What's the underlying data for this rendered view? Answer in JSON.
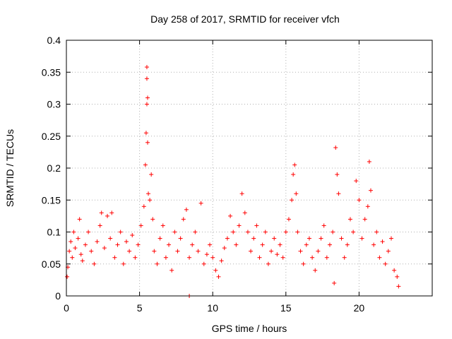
{
  "chart_data": {
    "type": "scatter",
    "title": "Day 258 of 2017, SRMTID for receiver vfch",
    "xlabel": "GPS time / hours",
    "ylabel": "SRMTID / TECUs",
    "xlim": [
      0,
      25
    ],
    "ylim": [
      0,
      0.4
    ],
    "x_ticks": [
      0,
      5,
      10,
      15,
      20
    ],
    "x_tick_labels": [
      "0",
      "5",
      "10",
      "15",
      "20"
    ],
    "y_ticks": [
      0,
      0.05,
      0.1,
      0.15,
      0.2,
      0.25,
      0.3,
      0.35,
      0.4
    ],
    "y_tick_labels": [
      "0",
      "0.05",
      "0.1",
      "0.15",
      "0.2",
      "0.25",
      "0.3",
      "0.35",
      "0.4"
    ],
    "grid": true,
    "marker": "+",
    "color": "#ff0000",
    "series": [
      {
        "name": "SRMTID",
        "points": [
          [
            0.05,
            0.03
          ],
          [
            0.1,
            0.045
          ],
          [
            0.2,
            0.07
          ],
          [
            0.3,
            0.085
          ],
          [
            0.4,
            0.06
          ],
          [
            0.5,
            0.1
          ],
          [
            0.6,
            0.075
          ],
          [
            0.8,
            0.09
          ],
          [
            0.9,
            0.12
          ],
          [
            1.0,
            0.065
          ],
          [
            1.1,
            0.055
          ],
          [
            1.3,
            0.08
          ],
          [
            1.5,
            0.1
          ],
          [
            1.7,
            0.07
          ],
          [
            1.9,
            0.05
          ],
          [
            2.1,
            0.085
          ],
          [
            2.3,
            0.11
          ],
          [
            2.4,
            0.13
          ],
          [
            2.6,
            0.075
          ],
          [
            2.8,
            0.125
          ],
          [
            3.0,
            0.09
          ],
          [
            3.1,
            0.13
          ],
          [
            3.3,
            0.06
          ],
          [
            3.5,
            0.08
          ],
          [
            3.7,
            0.1
          ],
          [
            3.9,
            0.05
          ],
          [
            4.1,
            0.085
          ],
          [
            4.3,
            0.07
          ],
          [
            4.5,
            0.095
          ],
          [
            4.7,
            0.06
          ],
          [
            4.9,
            0.08
          ],
          [
            5.1,
            0.11
          ],
          [
            5.3,
            0.14
          ],
          [
            5.4,
            0.205
          ],
          [
            5.45,
            0.255
          ],
          [
            5.5,
            0.3
          ],
          [
            5.5,
            0.34
          ],
          [
            5.5,
            0.358
          ],
          [
            5.55,
            0.31
          ],
          [
            5.55,
            0.24
          ],
          [
            5.6,
            0.16
          ],
          [
            5.7,
            0.15
          ],
          [
            5.8,
            0.19
          ],
          [
            5.9,
            0.12
          ],
          [
            6.0,
            0.07
          ],
          [
            6.2,
            0.05
          ],
          [
            6.4,
            0.09
          ],
          [
            6.6,
            0.11
          ],
          [
            6.8,
            0.06
          ],
          [
            7.0,
            0.08
          ],
          [
            7.2,
            0.04
          ],
          [
            7.4,
            0.1
          ],
          [
            7.6,
            0.07
          ],
          [
            7.8,
            0.09
          ],
          [
            8.0,
            0.12
          ],
          [
            8.2,
            0.135
          ],
          [
            8.4,
            0.06
          ],
          [
            8.6,
            0.08
          ],
          [
            8.8,
            0.1
          ],
          [
            9.0,
            0.07
          ],
          [
            9.2,
            0.145
          ],
          [
            9.4,
            0.05
          ],
          [
            9.6,
            0.065
          ],
          [
            9.8,
            0.08
          ],
          [
            10.0,
            0.06
          ],
          [
            10.2,
            0.04
          ],
          [
            10.4,
            0.03
          ],
          [
            10.6,
            0.055
          ],
          [
            10.8,
            0.075
          ],
          [
            11.0,
            0.09
          ],
          [
            11.2,
            0.125
          ],
          [
            11.4,
            0.1
          ],
          [
            11.6,
            0.08
          ],
          [
            11.8,
            0.11
          ],
          [
            12.0,
            0.16
          ],
          [
            12.2,
            0.13
          ],
          [
            12.4,
            0.1
          ],
          [
            12.6,
            0.07
          ],
          [
            12.8,
            0.09
          ],
          [
            13.0,
            0.11
          ],
          [
            13.2,
            0.06
          ],
          [
            13.4,
            0.08
          ],
          [
            13.6,
            0.1
          ],
          [
            13.8,
            0.05
          ],
          [
            14.0,
            0.07
          ],
          [
            14.2,
            0.09
          ],
          [
            14.4,
            0.065
          ],
          [
            14.6,
            0.08
          ],
          [
            14.8,
            0.06
          ],
          [
            15.0,
            0.1
          ],
          [
            15.2,
            0.12
          ],
          [
            15.4,
            0.15
          ],
          [
            15.5,
            0.19
          ],
          [
            15.6,
            0.205
          ],
          [
            15.7,
            0.16
          ],
          [
            15.8,
            0.1
          ],
          [
            16.0,
            0.07
          ],
          [
            16.2,
            0.05
          ],
          [
            16.4,
            0.08
          ],
          [
            16.6,
            0.09
          ],
          [
            16.8,
            0.06
          ],
          [
            17.0,
            0.04
          ],
          [
            17.2,
            0.07
          ],
          [
            17.4,
            0.09
          ],
          [
            17.6,
            0.11
          ],
          [
            17.8,
            0.06
          ],
          [
            18.0,
            0.08
          ],
          [
            18.2,
            0.1
          ],
          [
            18.3,
            0.02
          ],
          [
            18.4,
            0.232
          ],
          [
            18.5,
            0.19
          ],
          [
            18.6,
            0.16
          ],
          [
            18.8,
            0.09
          ],
          [
            19.0,
            0.06
          ],
          [
            19.2,
            0.08
          ],
          [
            19.4,
            0.12
          ],
          [
            19.6,
            0.1
          ],
          [
            19.8,
            0.18
          ],
          [
            20.0,
            0.15
          ],
          [
            20.2,
            0.09
          ],
          [
            20.4,
            0.12
          ],
          [
            20.6,
            0.14
          ],
          [
            20.7,
            0.21
          ],
          [
            20.8,
            0.165
          ],
          [
            21.0,
            0.08
          ],
          [
            21.2,
            0.1
          ],
          [
            21.4,
            0.06
          ],
          [
            21.6,
            0.085
          ],
          [
            21.8,
            0.05
          ],
          [
            22.0,
            0.07
          ],
          [
            22.2,
            0.09
          ],
          [
            22.4,
            0.04
          ],
          [
            22.6,
            0.03
          ],
          [
            22.7,
            0.015
          ],
          [
            8.4,
            0
          ]
        ]
      }
    ]
  }
}
